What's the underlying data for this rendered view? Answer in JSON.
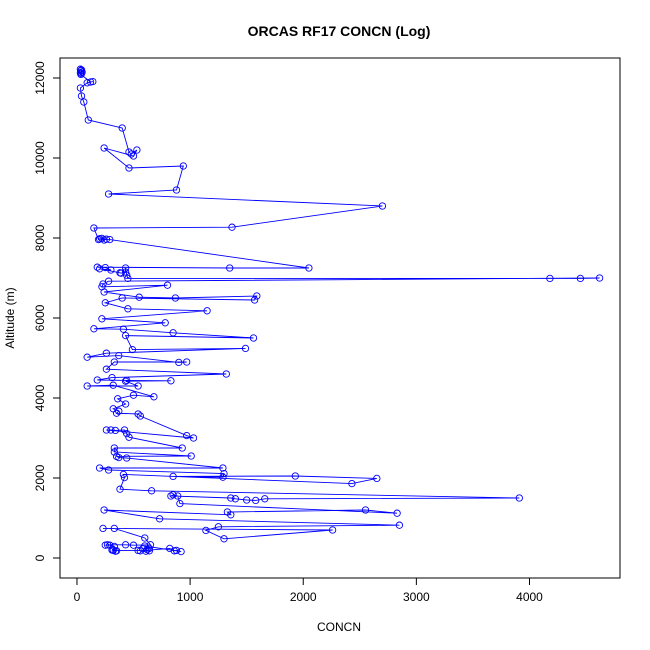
{
  "chart_data": {
    "type": "line",
    "title": "ORCAS RF17 CONCN (Log)",
    "xlabel": "CONCN",
    "ylabel": "Altitude (m)",
    "xlim": [
      -150,
      4800
    ],
    "ylim": [
      -500,
      12500
    ],
    "x_ticks": [
      0,
      1000,
      2000,
      3000,
      4000
    ],
    "y_ticks": [
      0,
      2000,
      4000,
      6000,
      8000,
      10000,
      12000
    ],
    "grid": false,
    "markers": "open-circle",
    "series_color": "#0000ff",
    "series": [
      {
        "points": [
          [
            30,
            12220
          ],
          [
            40,
            12200
          ],
          [
            35,
            12180
          ],
          [
            45,
            12150
          ],
          [
            30,
            12130
          ],
          [
            40,
            12110
          ],
          [
            35,
            12090
          ],
          [
            120,
            11900
          ],
          [
            140,
            11910
          ],
          [
            90,
            11880
          ],
          [
            30,
            11750
          ],
          [
            40,
            11550
          ],
          [
            60,
            11400
          ],
          [
            100,
            10950
          ],
          [
            400,
            10750
          ],
          [
            460,
            10150
          ],
          [
            480,
            10100
          ],
          [
            530,
            10200
          ],
          [
            500,
            10050
          ],
          [
            240,
            10250
          ],
          [
            460,
            9750
          ],
          [
            940,
            9800
          ],
          [
            880,
            9200
          ],
          [
            280,
            9100
          ],
          [
            2700,
            8800
          ],
          [
            1370,
            8270
          ],
          [
            150,
            8250
          ],
          [
            190,
            7960
          ],
          [
            220,
            7990
          ],
          [
            260,
            7970
          ],
          [
            240,
            7950
          ],
          [
            200,
            7980
          ],
          [
            290,
            7960
          ],
          [
            2050,
            7250
          ],
          [
            1350,
            7250
          ],
          [
            180,
            7270
          ],
          [
            250,
            7260
          ],
          [
            300,
            7200
          ],
          [
            200,
            7230
          ],
          [
            380,
            7130
          ],
          [
            390,
            7120
          ],
          [
            430,
            7150
          ],
          [
            430,
            7250
          ],
          [
            440,
            7070
          ],
          [
            450,
            6990
          ],
          [
            4180,
            6990
          ],
          [
            4450,
            6990
          ],
          [
            4620,
            7000
          ],
          [
            280,
            6920
          ],
          [
            230,
            6850
          ],
          [
            220,
            6780
          ],
          [
            800,
            6820
          ],
          [
            240,
            6650
          ],
          [
            550,
            6520
          ],
          [
            870,
            6500
          ],
          [
            1590,
            6550
          ],
          [
            1570,
            6450
          ],
          [
            400,
            6500
          ],
          [
            250,
            6380
          ],
          [
            450,
            6230
          ],
          [
            1150,
            6180
          ],
          [
            220,
            5980
          ],
          [
            780,
            5880
          ],
          [
            150,
            5730
          ],
          [
            410,
            5720
          ],
          [
            850,
            5630
          ],
          [
            1560,
            5500
          ],
          [
            430,
            5560
          ],
          [
            490,
            5210
          ],
          [
            1490,
            5240
          ],
          [
            260,
            5120
          ],
          [
            90,
            5020
          ],
          [
            370,
            5060
          ],
          [
            900,
            4890
          ],
          [
            970,
            4900
          ],
          [
            330,
            4900
          ],
          [
            260,
            4720
          ],
          [
            1320,
            4600
          ],
          [
            310,
            4510
          ],
          [
            180,
            4450
          ],
          [
            440,
            4440
          ],
          [
            830,
            4430
          ],
          [
            430,
            4420
          ],
          [
            540,
            4300
          ],
          [
            90,
            4300
          ],
          [
            320,
            4320
          ],
          [
            680,
            4030
          ],
          [
            500,
            4070
          ],
          [
            360,
            3980
          ],
          [
            430,
            3850
          ],
          [
            320,
            3730
          ],
          [
            370,
            3670
          ],
          [
            350,
            3620
          ],
          [
            540,
            3600
          ],
          [
            560,
            3550
          ],
          [
            970,
            3060
          ],
          [
            1030,
            3000
          ],
          [
            260,
            3200
          ],
          [
            300,
            3200
          ],
          [
            340,
            3190
          ],
          [
            420,
            3200
          ],
          [
            440,
            3110
          ],
          [
            460,
            3020
          ],
          [
            930,
            2750
          ],
          [
            330,
            2750
          ],
          [
            330,
            2650
          ],
          [
            1010,
            2550
          ],
          [
            350,
            2540
          ],
          [
            370,
            2510
          ],
          [
            440,
            2500
          ],
          [
            1290,
            2250
          ],
          [
            200,
            2250
          ],
          [
            280,
            2200
          ],
          [
            1300,
            2110
          ],
          [
            1290,
            2020
          ],
          [
            850,
            2040
          ],
          [
            1930,
            2050
          ],
          [
            2650,
            1990
          ],
          [
            2430,
            1860
          ],
          [
            410,
            2090
          ],
          [
            420,
            2010
          ],
          [
            380,
            1720
          ],
          [
            660,
            1680
          ],
          [
            3910,
            1500
          ],
          [
            1660,
            1480
          ],
          [
            1580,
            1440
          ],
          [
            1500,
            1450
          ],
          [
            1400,
            1480
          ],
          [
            1360,
            1500
          ],
          [
            830,
            1550
          ],
          [
            850,
            1580
          ],
          [
            890,
            1550
          ],
          [
            910,
            1360
          ],
          [
            2830,
            1120
          ],
          [
            2550,
            1200
          ],
          [
            1330,
            1150
          ],
          [
            1360,
            1080
          ],
          [
            240,
            1200
          ],
          [
            730,
            980
          ],
          [
            2850,
            820
          ],
          [
            1250,
            780
          ],
          [
            1140,
            690
          ],
          [
            1300,
            480
          ],
          [
            2260,
            700
          ],
          [
            230,
            740
          ],
          [
            330,
            740
          ],
          [
            600,
            500
          ],
          [
            650,
            330
          ],
          [
            500,
            320
          ],
          [
            430,
            330
          ],
          [
            270,
            330
          ],
          [
            250,
            320
          ],
          [
            290,
            320
          ],
          [
            330,
            290
          ],
          [
            320,
            200
          ],
          [
            310,
            200
          ],
          [
            350,
            180
          ],
          [
            340,
            170
          ],
          [
            320,
            190
          ],
          [
            540,
            190
          ],
          [
            610,
            170
          ],
          [
            640,
            180
          ],
          [
            560,
            180
          ],
          [
            820,
            240
          ],
          [
            860,
            180
          ],
          [
            880,
            190
          ],
          [
            920,
            160
          ],
          [
            600,
            300
          ],
          [
            640,
            240
          ],
          [
            580,
            230
          ],
          [
            620,
            210
          ]
        ]
      }
    ]
  }
}
